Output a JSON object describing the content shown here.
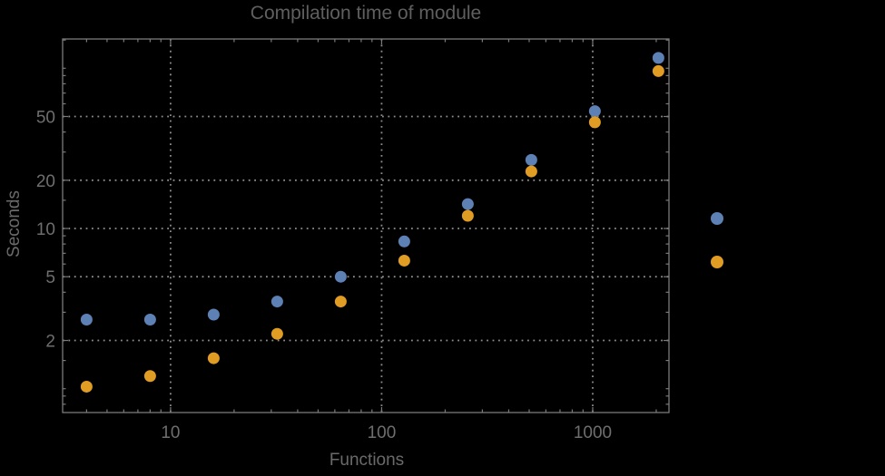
{
  "colors": {
    "background": "#000000",
    "series_blue": "#5E81B5",
    "series_orange": "#E19C24",
    "frame": "#7a7a7a",
    "grid": "#8d8d8d",
    "title_text": "#5f5f5f",
    "tick_text": "#6e6e6e",
    "axis_label_text": "#6a6a6a"
  },
  "chart_data": {
    "type": "scatter",
    "title": "Compilation time of module",
    "xlabel": "Functions",
    "ylabel": "Seconds",
    "xscale": "log",
    "yscale": "log",
    "xlim": [
      3.08,
      2298
    ],
    "ylim": [
      0.71,
      152.3
    ],
    "grid": "major-dotted",
    "x": [
      4,
      8,
      16,
      32,
      64,
      128,
      256,
      512,
      1024,
      2048
    ],
    "series": [
      {
        "name": "series-blue",
        "color": "#5E81B5",
        "values": [
          2.7,
          2.7,
          2.9,
          3.5,
          5.0,
          8.3,
          14.2,
          26.8,
          54,
          116
        ]
      },
      {
        "name": "series-orange",
        "color": "#E19C24",
        "values": [
          1.03,
          1.2,
          1.55,
          2.2,
          3.5,
          6.3,
          12,
          22.7,
          46,
          96
        ]
      }
    ],
    "x_major_ticks": [
      10,
      100,
      1000
    ],
    "x_major_labels": [
      "10",
      "100",
      "1000"
    ],
    "x_minor_ticks": [
      4,
      5,
      6,
      7,
      8,
      9,
      20,
      30,
      40,
      50,
      60,
      70,
      80,
      90,
      200,
      300,
      400,
      500,
      600,
      700,
      800,
      900,
      2000
    ],
    "y_major_ticks": [
      2,
      5,
      10,
      20,
      50
    ],
    "y_major_labels": [
      "2",
      "5",
      "10",
      "20",
      "50"
    ],
    "y_minor_ticks": [
      0.8,
      0.9,
      1,
      1.5,
      3,
      4,
      6,
      7,
      8,
      9,
      15,
      30,
      40,
      60,
      70,
      80,
      90,
      100,
      150
    ],
    "legend": {
      "position": "right-outside",
      "entries": [
        {
          "series": "series-blue",
          "label": ""
        },
        {
          "series": "series-orange",
          "label": ""
        }
      ]
    }
  }
}
